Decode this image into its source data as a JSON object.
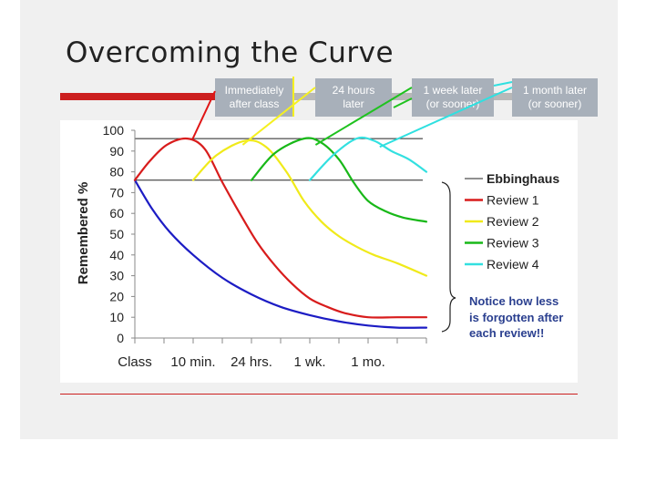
{
  "title": "Overcoming the Curve",
  "step_boxes": [
    {
      "label": "Immediately\nafter class",
      "color": "#e01515"
    },
    {
      "label": "24 hours\nlater",
      "color": "#f5f020"
    },
    {
      "label": "1 week later\n(or sooner)",
      "color": "#1fc21f"
    },
    {
      "label": "1 month later\n(or sooner)",
      "color": "#2fe0e0"
    }
  ],
  "note": [
    "Notice how less",
    "is forgotten after",
    "each review!!"
  ],
  "chart_data": {
    "type": "line",
    "title": "",
    "xlabel": "",
    "ylabel": "Remembered %",
    "ylim": [
      0,
      100
    ],
    "yticks": [
      0,
      10,
      20,
      30,
      40,
      50,
      60,
      70,
      80,
      90,
      100
    ],
    "xlim": [
      0,
      100
    ],
    "x_tick_labels": [
      {
        "label": "Class",
        "x": 0
      },
      {
        "label": "10 min.",
        "x": 20
      },
      {
        "label": "24 hrs.",
        "x": 40
      },
      {
        "label": "1 wk.",
        "x": 60
      },
      {
        "label": "1 mo.",
        "x": 80
      }
    ],
    "reference_lines": [
      96,
      76
    ],
    "series": [
      {
        "name": "Ebbinghaus",
        "color": "#1c1cc4",
        "points": [
          [
            0,
            76
          ],
          [
            6,
            62
          ],
          [
            12,
            51
          ],
          [
            20,
            40
          ],
          [
            30,
            29
          ],
          [
            40,
            21
          ],
          [
            50,
            15
          ],
          [
            60,
            11
          ],
          [
            70,
            8
          ],
          [
            80,
            6
          ],
          [
            90,
            5
          ],
          [
            100,
            5
          ]
        ]
      },
      {
        "name": "Review 1",
        "color": "#d81c1c",
        "points": [
          [
            0,
            76
          ],
          [
            5,
            85
          ],
          [
            11,
            93
          ],
          [
            18,
            96
          ],
          [
            24,
            91
          ],
          [
            30,
            75
          ],
          [
            36,
            60
          ],
          [
            42,
            46
          ],
          [
            48,
            35
          ],
          [
            54,
            26
          ],
          [
            60,
            19
          ],
          [
            66,
            15
          ],
          [
            72,
            12
          ],
          [
            80,
            10
          ],
          [
            90,
            10
          ],
          [
            100,
            10
          ]
        ]
      },
      {
        "name": "Review 2",
        "color": "#f0ea1a",
        "points": [
          [
            20,
            76
          ],
          [
            28,
            88
          ],
          [
            38,
            95
          ],
          [
            45,
            92
          ],
          [
            52,
            80
          ],
          [
            58,
            66
          ],
          [
            64,
            56
          ],
          [
            70,
            49
          ],
          [
            76,
            44
          ],
          [
            82,
            40
          ],
          [
            90,
            36
          ],
          [
            100,
            30
          ]
        ]
      },
      {
        "name": "Review 3",
        "color": "#18b818",
        "points": [
          [
            40,
            76
          ],
          [
            48,
            89
          ],
          [
            58,
            96
          ],
          [
            64,
            94
          ],
          [
            70,
            86
          ],
          [
            75,
            75
          ],
          [
            80,
            66
          ],
          [
            86,
            61
          ],
          [
            92,
            58
          ],
          [
            100,
            56
          ]
        ]
      },
      {
        "name": "Review 4",
        "color": "#33e0e0",
        "points": [
          [
            60,
            76
          ],
          [
            68,
            88
          ],
          [
            76,
            96
          ],
          [
            82,
            95
          ],
          [
            88,
            90
          ],
          [
            94,
            86
          ],
          [
            100,
            80
          ]
        ]
      }
    ]
  }
}
